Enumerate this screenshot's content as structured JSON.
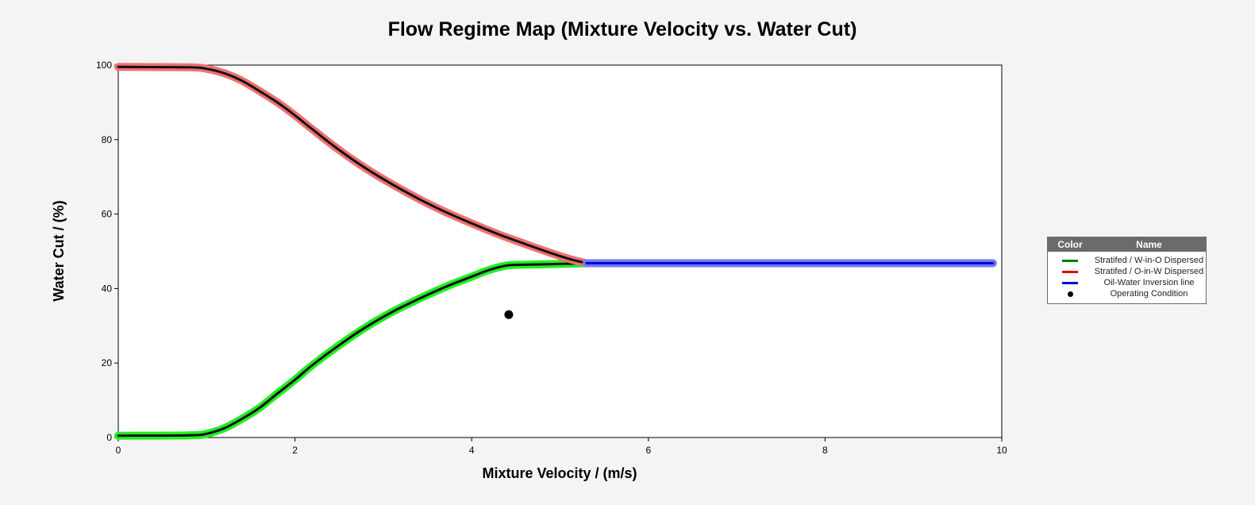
{
  "chart_data": {
    "type": "line",
    "title": "Flow Regime Map (Mixture Velocity vs. Water Cut)",
    "xlabel": "Mixture Velocity / (m/s)",
    "ylabel": "Water Cut / (%)",
    "xlim": [
      0,
      10
    ],
    "ylim": [
      0,
      100
    ],
    "xticks": [
      "0",
      "2",
      "4",
      "6",
      "8",
      "10"
    ],
    "yticks": [
      "0",
      "20",
      "40",
      "60",
      "80",
      "100"
    ],
    "grid": false,
    "legend_position": "right",
    "legend_header": {
      "color": "Color",
      "name": "Name"
    },
    "series": [
      {
        "name": "Stratifed / W-in-O Dispersed",
        "color": "#008000",
        "glow": "#22ee22",
        "x": [
          0,
          0.8,
          1.0,
          1.2,
          1.4,
          1.6,
          1.8,
          2.0,
          2.2,
          2.5,
          2.8,
          3.1,
          3.4,
          3.7,
          4.0,
          4.2,
          4.4,
          4.6,
          5.0,
          5.3
        ],
        "y": [
          0.5,
          0.6,
          1.0,
          2.5,
          5.0,
          8.0,
          11.8,
          15.5,
          19.5,
          24.8,
          29.6,
          33.7,
          37.2,
          40.4,
          43.2,
          45.0,
          46.2,
          46.4,
          46.6,
          46.8
        ]
      },
      {
        "name": "Stratifed / O-in-W Dispersed",
        "color": "#e00000",
        "glow": "#f07070",
        "x": [
          0,
          0.8,
          1.0,
          1.2,
          1.4,
          1.6,
          1.8,
          2.0,
          2.2,
          2.5,
          2.8,
          3.1,
          3.4,
          3.7,
          4.0,
          4.3,
          4.6,
          4.9,
          5.1,
          5.3
        ],
        "y": [
          99.5,
          99.4,
          99.0,
          97.8,
          95.8,
          93.0,
          90.0,
          86.5,
          82.7,
          77.2,
          72.3,
          68.0,
          64.1,
          60.6,
          57.5,
          54.6,
          52.0,
          49.5,
          48.0,
          46.8
        ]
      },
      {
        "name": "Oil-Water Inversion line",
        "color": "#0000e0",
        "glow": "#7777ee",
        "x": [
          5.3,
          9.9
        ],
        "y": [
          46.8,
          46.8
        ]
      }
    ],
    "points": [
      {
        "name": "Operating Condition",
        "color": "#000000",
        "x": 4.42,
        "y": 33.0
      }
    ]
  }
}
